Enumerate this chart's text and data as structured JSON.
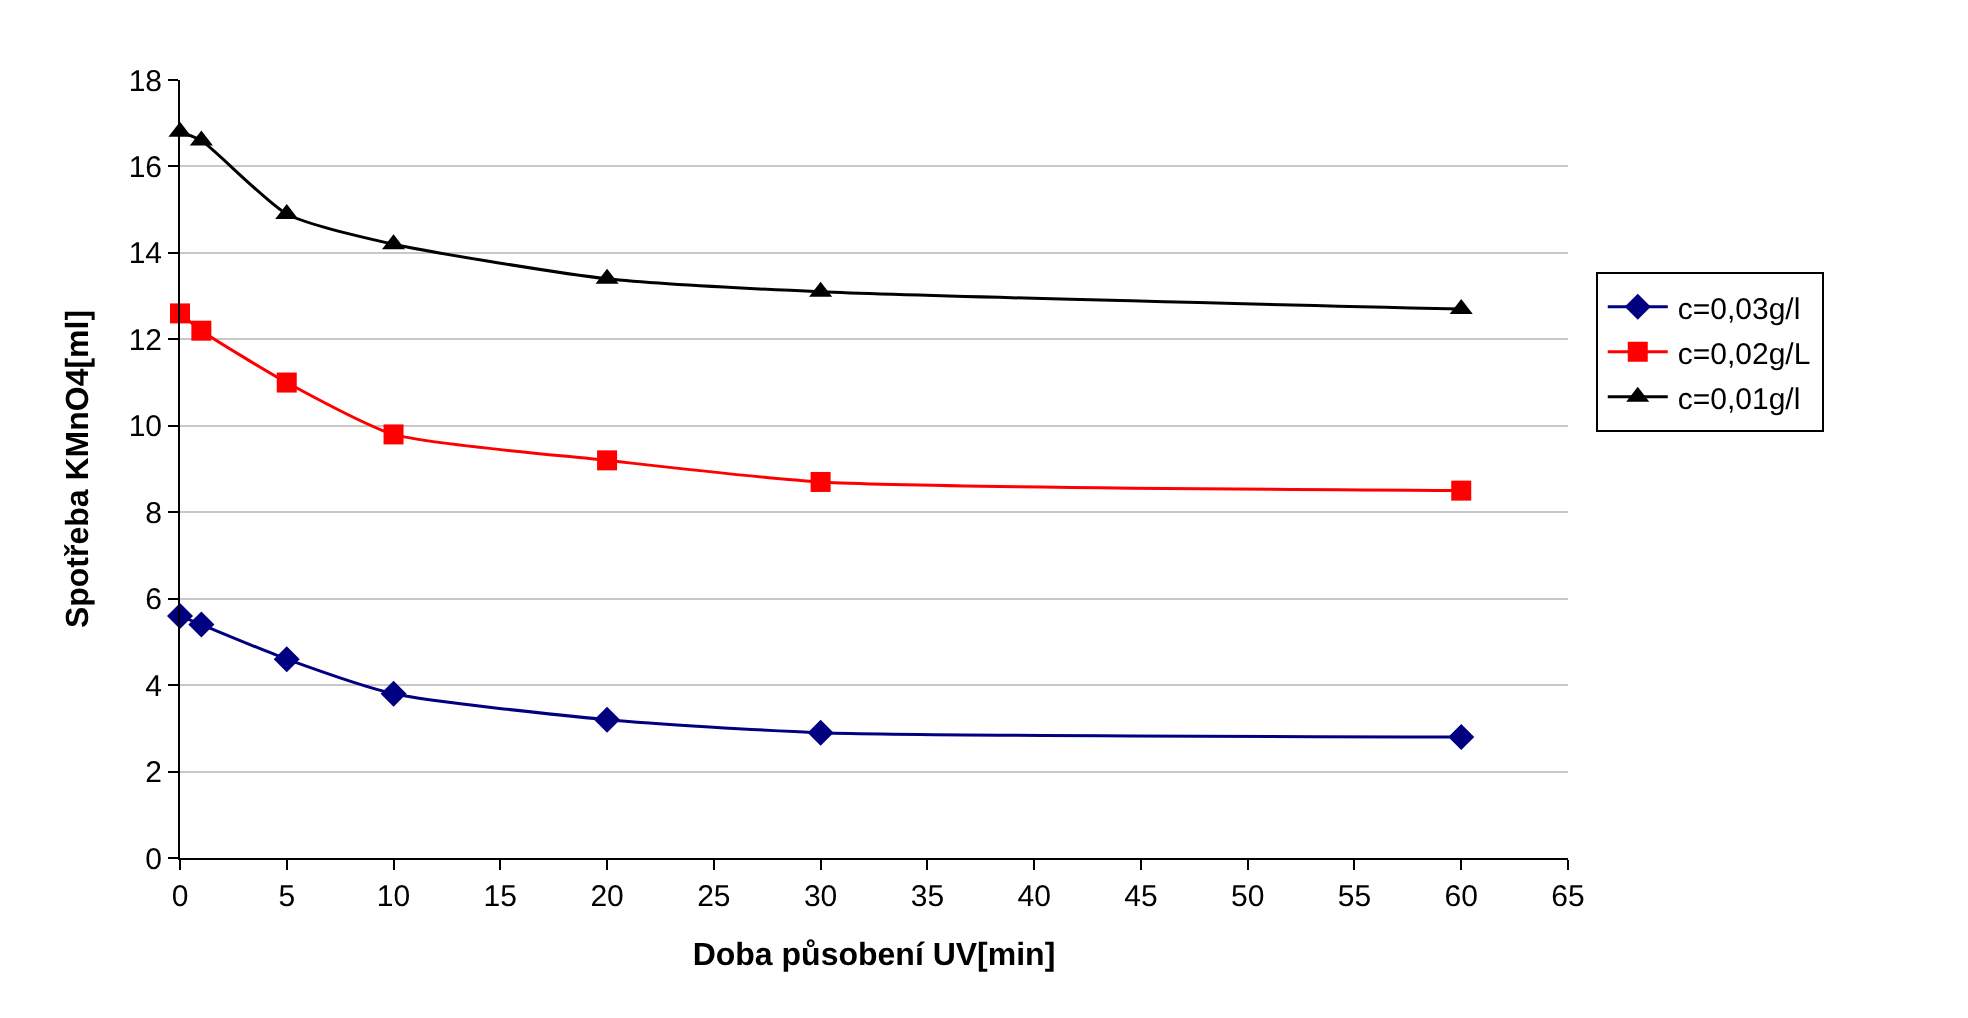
{
  "chart_data": {
    "type": "line",
    "xlabel": "Doba působení UV[min]",
    "ylabel": "Spotřeba KMnO4[ml]",
    "x": [
      0,
      1,
      5,
      10,
      20,
      30,
      60
    ],
    "series": [
      {
        "name": "c=0,03g/l",
        "color": "#000080",
        "marker": "diamond",
        "values": [
          5.6,
          5.4,
          4.6,
          3.8,
          3.2,
          2.9,
          2.8
        ]
      },
      {
        "name": "c=0,02g/L",
        "color": "#ff0000",
        "marker": "square",
        "values": [
          12.6,
          12.2,
          11.0,
          9.8,
          9.2,
          8.7,
          8.5
        ]
      },
      {
        "name": "c=0,01g/l",
        "color": "#000000",
        "marker": "triangle",
        "values": [
          16.8,
          16.6,
          14.9,
          14.2,
          13.4,
          13.1,
          12.7
        ]
      }
    ],
    "xlim": [
      0,
      65
    ],
    "xticks": [
      0,
      5,
      10,
      15,
      20,
      25,
      30,
      35,
      40,
      45,
      50,
      55,
      60,
      65
    ],
    "ylim": [
      0,
      18
    ],
    "yticks": [
      0,
      2,
      4,
      6,
      8,
      10,
      12,
      14,
      16,
      18
    ],
    "grid": "y",
    "legend": "right",
    "line_style": "solid"
  }
}
